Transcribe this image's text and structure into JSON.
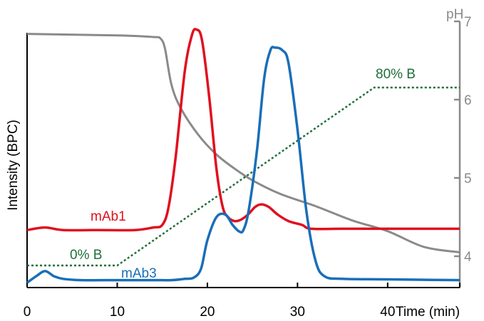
{
  "chart_data": {
    "type": "line",
    "xlabel": "Time (min)",
    "ylabel": "Intensity (BPC)",
    "y2label": "pH",
    "xlim": [
      0,
      48
    ],
    "x_ticks": [
      "0",
      "10",
      "20",
      "30",
      "40"
    ],
    "y2lim": [
      3.6,
      7.0
    ],
    "y2_ticks": [
      "4",
      "5",
      "6",
      "7"
    ],
    "ylim_intensity": [
      0,
      100
    ],
    "colors": {
      "mAb1": "#e0101e",
      "mAb3": "#1a6eb8",
      "pH": "#8a8a8a",
      "gradient": "#1e6e3a",
      "axis": "#000000",
      "right_axis": "#8a8a8a"
    },
    "series": [
      {
        "name": "mAb1",
        "axis": "left",
        "x": [
          0,
          2,
          4,
          8,
          12,
          14,
          15,
          15.7,
          16.5,
          17.5,
          18.3,
          18.8,
          19.4,
          20.2,
          21,
          21.7,
          22.3,
          23,
          23.7,
          24.5,
          25.3,
          26,
          26.8,
          27.8,
          29,
          30.5,
          31.5,
          35,
          40,
          45,
          48
        ],
        "y": [
          21,
          22,
          21,
          21,
          21,
          22,
          23,
          30,
          50,
          83,
          97,
          99,
          95,
          73,
          45,
          30,
          26,
          24.5,
          25,
          27,
          30,
          31,
          30,
          27,
          24.5,
          23,
          21.5,
          21.5,
          21.5,
          21.5,
          21.5
        ]
      },
      {
        "name": "mAb3",
        "axis": "left",
        "x": [
          0,
          1,
          2,
          3,
          4,
          6,
          10,
          14,
          16,
          17.5,
          18.5,
          19.3,
          20,
          21,
          22,
          22.8,
          23.5,
          24,
          24.6,
          25.5,
          26.3,
          27,
          27.5,
          28.3,
          29,
          30,
          31,
          32,
          33,
          35,
          40,
          45,
          48
        ],
        "y": [
          0.5,
          3,
          5,
          3,
          2,
          1.5,
          1.5,
          1.5,
          1.5,
          2,
          2.5,
          6,
          17,
          26,
          27,
          23,
          20.5,
          21,
          29,
          52,
          80,
          91,
          92,
          91,
          86,
          60,
          28,
          9,
          3,
          2,
          1.8,
          1.6,
          1.5
        ]
      },
      {
        "name": "pH",
        "axis": "right",
        "x": [
          0,
          10,
          14,
          14.8,
          15.3,
          16,
          17,
          19,
          21,
          23,
          25,
          28,
          32,
          36,
          40,
          44,
          48
        ],
        "y": [
          6.84,
          6.82,
          6.8,
          6.78,
          6.65,
          6.2,
          5.9,
          5.55,
          5.3,
          5.12,
          4.97,
          4.8,
          4.64,
          4.46,
          4.32,
          4.12,
          4.05
        ]
      },
      {
        "name": "gradient",
        "axis": "percent_b",
        "x": [
          0,
          10,
          38.5,
          48
        ],
        "y": [
          0,
          0,
          80,
          80
        ]
      }
    ],
    "annotations": [
      {
        "text": "mAb1",
        "color": "mAb1"
      },
      {
        "text": "mAb3",
        "color": "mAb3"
      },
      {
        "text": "0% B",
        "color": "gradient"
      },
      {
        "text": "80% B",
        "color": "gradient"
      }
    ]
  }
}
